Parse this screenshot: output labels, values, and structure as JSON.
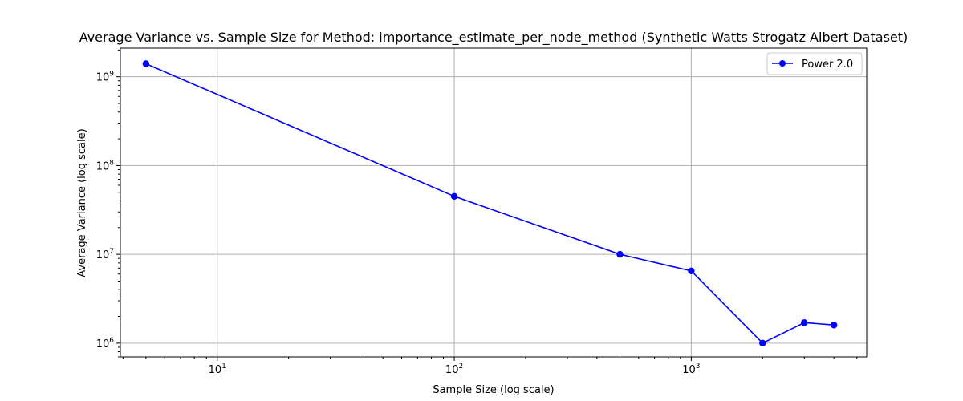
{
  "chart_data": {
    "type": "line",
    "title": "Average Variance vs. Sample Size for Method: importance_estimate_per_node_method (Synthetic Watts Strogatz Albert Dataset)",
    "xlabel": "Sample Size (log scale)",
    "ylabel": "Average Variance (log scale)",
    "x_scale": "log",
    "y_scale": "log",
    "xlim": [
      3.9,
      5500
    ],
    "ylim": [
      700000,
      2100000000
    ],
    "x_ticks": [
      10,
      100,
      1000
    ],
    "y_ticks": [
      1000000,
      10000000,
      100000000,
      1000000000
    ],
    "grid": true,
    "legend_position": "top-right",
    "series": [
      {
        "name": "Power 2.0",
        "color": "#0000ff",
        "marker": "circle",
        "x": [
          5,
          100,
          500,
          1000,
          2000,
          3000,
          4000
        ],
        "y": [
          1400000000,
          45000000,
          10000000,
          6500000,
          1000000,
          1700000,
          1600000
        ]
      }
    ]
  }
}
